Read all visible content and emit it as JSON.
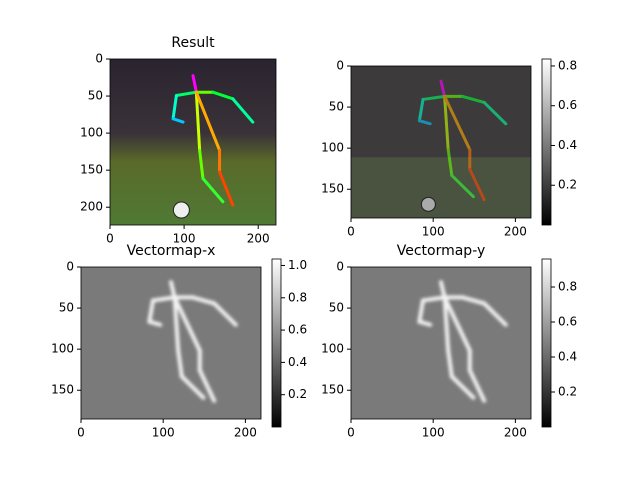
{
  "chart_data": [
    {
      "type": "image",
      "title": "Result",
      "xlim": [
        0,
        224
      ],
      "ylim": [
        224,
        0
      ],
      "xticks": [
        0,
        100,
        200
      ],
      "yticks": [
        0,
        50,
        100,
        150,
        200
      ],
      "style": "photo"
    },
    {
      "type": "image",
      "xlim": [
        0,
        219
      ],
      "ylim": [
        185,
        0
      ],
      "xticks": [
        0,
        100,
        200
      ],
      "yticks": [
        0,
        50,
        100,
        150
      ],
      "style": "overlay",
      "clim": [
        0,
        0.835
      ],
      "cticks": [
        0.2,
        0.4,
        0.6,
        0.8
      ]
    },
    {
      "type": "image",
      "title": "Vectormap-x",
      "xlim": [
        0,
        219
      ],
      "ylim": [
        185,
        0
      ],
      "xticks": [
        0,
        100,
        200
      ],
      "yticks": [
        0,
        50,
        100,
        150
      ],
      "style": "map",
      "clim": [
        0,
        1.04
      ],
      "cticks": [
        0.2,
        0.4,
        0.6,
        0.8,
        {
          "value": 1,
          "label": "1.0"
        }
      ]
    },
    {
      "type": "image",
      "title": "Vectormap-y",
      "xlim": [
        0,
        219
      ],
      "ylim": [
        185,
        0
      ],
      "xticks": [
        0,
        100,
        200
      ],
      "yticks": [
        0,
        50,
        100,
        150
      ],
      "style": "map",
      "clim": [
        0,
        0.96
      ],
      "cticks": [
        0.2,
        0.4,
        0.6,
        0.8
      ]
    }
  ]
}
